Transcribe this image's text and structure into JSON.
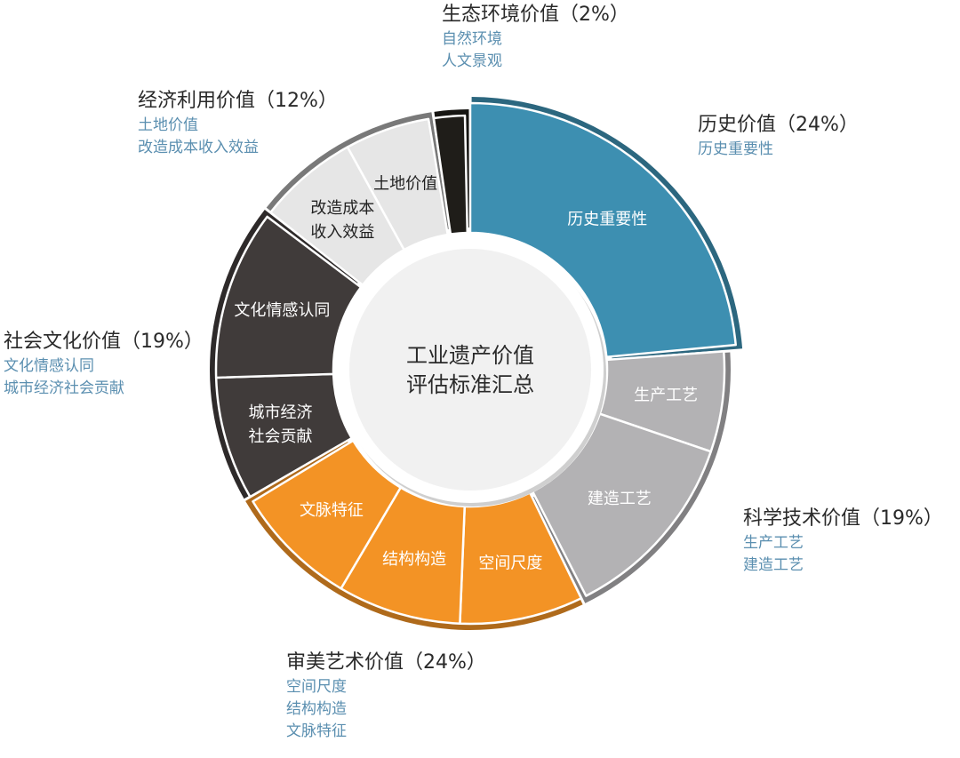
{
  "chart_data": {
    "type": "pie",
    "title": "工业遗产价值评估标准汇总",
    "center_label_lines": [
      "工业遗产价值",
      "评估标准汇总"
    ],
    "categories": [
      {
        "name": "历史价值",
        "percent": 24,
        "title_text": "历史价值（24%）",
        "color": "#3d8fb1",
        "items": [
          {
            "label": "历史重要性",
            "percent": 24
          }
        ]
      },
      {
        "name": "科学技术价值",
        "percent": 19,
        "title_text": "科学技术价值（19%）",
        "color": "#b3b2b4",
        "items": [
          {
            "label": "生产工艺",
            "percent": 6.5
          },
          {
            "label": "建造工艺",
            "percent": 12.5
          }
        ]
      },
      {
        "name": "审美艺术价值",
        "percent": 24,
        "title_text": "审美艺术价值（24%）",
        "color": "#f39325",
        "items": [
          {
            "label": "空间尺度",
            "percent": 8
          },
          {
            "label": "结构构造",
            "percent": 8
          },
          {
            "label": "文脉特征",
            "percent": 8
          }
        ]
      },
      {
        "name": "社会文化价值",
        "percent": 19,
        "title_text": "社会文化价值（19%）",
        "color": "#403b3a",
        "items": [
          {
            "label": "城市经济社会贡献",
            "label_lines": [
              "城市经济",
              "社会贡献"
            ],
            "percent": 8
          },
          {
            "label": "文化情感认同",
            "percent": 11
          }
        ]
      },
      {
        "name": "经济利用价值",
        "percent": 12,
        "title_text": "经济利用价值（12%）",
        "color": "#e6e6e6",
        "items": [
          {
            "label": "改造成本收入效益",
            "label_lines": [
              "改造成本",
              "收入效益"
            ],
            "percent": 6.5
          },
          {
            "label": "土地价值",
            "percent": 5.5
          }
        ]
      },
      {
        "name": "生态环境价值",
        "percent": 2,
        "title_text": "生态环境价值（2%）",
        "color": "#1f1d19",
        "items": [
          {
            "label": "",
            "percent": 2
          }
        ]
      }
    ]
  },
  "callouts": {
    "history": {
      "title": "历史价值（24%）",
      "items": [
        "历史重要性"
      ]
    },
    "tech": {
      "title": "科学技术价值（19%）",
      "items": [
        "生产工艺",
        "建造工艺"
      ]
    },
    "aesthetic": {
      "title": "审美艺术价值（24%）",
      "items": [
        "空间尺度",
        "结构构造",
        "文脉特征"
      ]
    },
    "social": {
      "title": "社会文化价值（19%）",
      "items": [
        "文化情感认同",
        "城市经济社会贡献"
      ]
    },
    "economic": {
      "title": "经济利用价值（12%）",
      "items": [
        "土地价值",
        "改造成本收入效益"
      ]
    },
    "eco": {
      "title": "生态环境价值（2%）",
      "items": [
        "自然环境",
        "人文景观"
      ]
    }
  },
  "colors": {
    "callout_title": "#2a2a2a",
    "callout_item": "#5b8fb0",
    "center_fill": "#f1f1f1",
    "label_light": "#ffffff",
    "label_dark": "#222222"
  }
}
